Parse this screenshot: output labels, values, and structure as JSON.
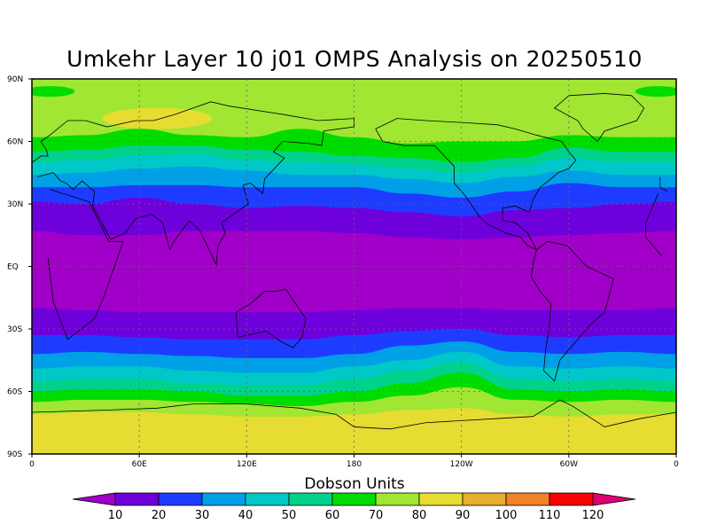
{
  "title": "Umkehr Layer 10 j01 OMPS Analysis on 20250510",
  "colorbar": {
    "title": "Dobson Units",
    "levels": [
      "10",
      "20",
      "30",
      "40",
      "50",
      "60",
      "70",
      "80",
      "90",
      "100",
      "110",
      "120"
    ],
    "colors": [
      "#a000c8",
      "#6e00dc",
      "#1e3cff",
      "#00a0e6",
      "#00c8c8",
      "#00d28c",
      "#00dc00",
      "#a0e632",
      "#e6dc32",
      "#e6af2d",
      "#f08228",
      "#fa0000",
      "#dc0073"
    ]
  },
  "axes": {
    "lat_labels": [
      "90N",
      "60N",
      "30N",
      "EQ",
      "30S",
      "60S",
      "90S"
    ],
    "lon_labels": [
      "0",
      "60E",
      "120E",
      "180",
      "120W",
      "60W",
      "0"
    ]
  },
  "chart_data": {
    "type": "heatmap",
    "title": "Umkehr Layer 10 j01 OMPS Analysis on 20250510",
    "units": "Dobson Units",
    "lon_range": [
      0,
      360
    ],
    "lat_range": [
      -90,
      90
    ],
    "grid": "on",
    "colorbar_position": "bottom",
    "contour_levels": [
      10,
      20,
      30,
      40,
      50,
      60,
      70,
      80,
      90,
      100,
      110,
      120
    ],
    "band_boundaries": [
      {
        "boundary": "80/90",
        "lon": [
          0,
          30,
          60,
          90,
          120,
          150,
          180,
          210,
          240,
          270,
          300,
          330,
          360
        ],
        "lat": [
          -71,
          -70,
          -70,
          -71,
          -72,
          -72,
          -71,
          -69,
          -68,
          -71,
          -72,
          -71,
          -71
        ]
      },
      {
        "boundary": "70/80",
        "lon": [
          0,
          30,
          60,
          90,
          120,
          150,
          180,
          210,
          240,
          270,
          300,
          330,
          360
        ],
        "lat": [
          -65,
          -64,
          -64,
          -65,
          -66,
          -67,
          -65,
          -62,
          -58,
          -64,
          -65,
          -64,
          -65
        ]
      },
      {
        "boundary": "60/70",
        "lon": [
          0,
          30,
          60,
          90,
          120,
          150,
          180,
          210,
          240,
          270,
          300,
          330,
          360
        ],
        "lat": [
          -60,
          -59,
          -59,
          -60,
          -62,
          -62,
          -60,
          -56,
          -51,
          -59,
          -60,
          -59,
          -60
        ]
      },
      {
        "boundary": "50/60",
        "lon": [
          0,
          30,
          60,
          90,
          120,
          150,
          180,
          210,
          240,
          270,
          300,
          330,
          360
        ],
        "lat": [
          -55,
          -54,
          -54,
          -56,
          -57,
          -57,
          -54,
          -50,
          -46,
          -54,
          -55,
          -54,
          -55
        ]
      },
      {
        "boundary": "40/50",
        "lon": [
          0,
          30,
          60,
          90,
          120,
          150,
          180,
          210,
          240,
          270,
          300,
          330,
          360
        ],
        "lat": [
          -49,
          -48,
          -48,
          -50,
          -51,
          -51,
          -48,
          -45,
          -41,
          -48,
          -49,
          -48,
          -49
        ]
      },
      {
        "boundary": "30/40",
        "lon": [
          0,
          30,
          60,
          90,
          120,
          150,
          180,
          210,
          240,
          270,
          300,
          330,
          360
        ],
        "lat": [
          -42,
          -41,
          -42,
          -43,
          -44,
          -44,
          -42,
          -38,
          -36,
          -41,
          -42,
          -41,
          -42
        ]
      },
      {
        "boundary": "20/30",
        "lon": [
          0,
          30,
          60,
          90,
          120,
          150,
          180,
          210,
          240,
          270,
          300,
          330,
          360
        ],
        "lat": [
          -33,
          -33,
          -34,
          -35,
          -35,
          -35,
          -33,
          -31,
          -30,
          -33,
          -34,
          -33,
          -33
        ]
      },
      {
        "boundary": "10/20",
        "lon": [
          0,
          30,
          60,
          90,
          120,
          150,
          180,
          210,
          240,
          270,
          300,
          330,
          360
        ],
        "lat": [
          -20,
          -21,
          -22,
          -22,
          -22,
          -22,
          -21,
          -20,
          -20,
          -21,
          -21,
          -21,
          -20
        ]
      },
      {
        "boundary": "10/20",
        "lon": [
          0,
          30,
          60,
          90,
          120,
          150,
          180,
          210,
          240,
          270,
          300,
          330,
          360
        ],
        "lat": [
          17,
          15,
          15,
          17,
          17,
          17,
          16,
          14,
          13,
          14,
          15,
          16,
          17
        ]
      },
      {
        "boundary": "20/30",
        "lon": [
          0,
          30,
          60,
          90,
          120,
          150,
          180,
          210,
          240,
          270,
          300,
          330,
          360
        ],
        "lat": [
          31,
          30,
          33,
          30,
          28,
          29,
          28,
          26,
          24,
          27,
          28,
          30,
          31
        ]
      },
      {
        "boundary": "30/40",
        "lon": [
          0,
          30,
          60,
          90,
          120,
          150,
          180,
          210,
          240,
          270,
          300,
          330,
          360
        ],
        "lat": [
          38,
          38,
          39,
          39,
          38,
          38,
          38,
          35,
          33,
          36,
          40,
          38,
          38
        ]
      },
      {
        "boundary": "40/50",
        "lon": [
          0,
          30,
          60,
          90,
          120,
          150,
          180,
          210,
          240,
          270,
          300,
          330,
          360
        ],
        "lat": [
          44,
          45,
          47,
          48,
          46,
          44,
          44,
          42,
          40,
          43,
          46,
          44,
          44
        ]
      },
      {
        "boundary": "50/60",
        "lon": [
          0,
          30,
          60,
          90,
          120,
          150,
          180,
          210,
          240,
          270,
          300,
          330,
          360
        ],
        "lat": [
          50,
          51,
          53,
          54,
          51,
          50,
          49,
          47,
          45,
          48,
          52,
          50,
          50
        ]
      },
      {
        "boundary": "60/70",
        "lon": [
          0,
          30,
          60,
          90,
          120,
          150,
          180,
          210,
          240,
          270,
          300,
          330,
          360
        ],
        "lat": [
          55,
          56,
          58,
          58,
          56,
          55,
          53,
          52,
          50,
          52,
          57,
          55,
          55
        ]
      },
      {
        "boundary": "70/80",
        "lon": [
          0,
          30,
          60,
          90,
          120,
          150,
          180,
          210,
          240,
          270,
          300,
          330,
          360
        ],
        "lat": [
          62,
          63,
          66,
          63,
          62,
          66,
          62,
          59,
          60,
          60,
          63,
          62,
          62
        ]
      }
    ]
  }
}
